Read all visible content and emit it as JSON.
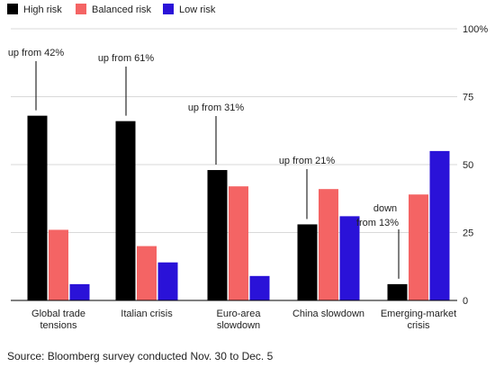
{
  "chart_data": {
    "type": "bar",
    "categories": [
      [
        "Global trade",
        "tensions"
      ],
      [
        "Italian crisis"
      ],
      [
        "Euro-area",
        "slowdown"
      ],
      [
        "China slowdown"
      ],
      [
        "Emerging-market",
        "crisis"
      ]
    ],
    "series": [
      {
        "name": "High risk",
        "color": "#000000",
        "values": [
          68,
          66,
          48,
          28,
          6
        ]
      },
      {
        "name": "Balanced risk",
        "color": "#f46464",
        "values": [
          26,
          20,
          42,
          41,
          39
        ]
      },
      {
        "name": "Low risk",
        "color": "#2a12d8",
        "values": [
          6,
          14,
          9,
          31,
          55
        ]
      }
    ],
    "ylim": [
      0,
      100
    ],
    "yticks": [
      {
        "value": 0,
        "label": "0"
      },
      {
        "value": 25,
        "label": "25"
      },
      {
        "value": 50,
        "label": "50"
      },
      {
        "value": 75,
        "label": "75"
      },
      {
        "value": 100,
        "label": "100%"
      }
    ],
    "grid": true,
    "legend": "top-left",
    "annotations": [
      {
        "category": 0,
        "lines": [
          "up from 42%"
        ]
      },
      {
        "category": 1,
        "lines": [
          "up from 61%"
        ]
      },
      {
        "category": 2,
        "lines": [
          "up from 31%"
        ]
      },
      {
        "category": 3,
        "lines": [
          "up from 21%"
        ]
      },
      {
        "category": 4,
        "lines": [
          "down",
          "from 13%"
        ]
      }
    ],
    "source": "Source: Bloomberg survey conducted Nov. 30 to Dec. 5"
  }
}
